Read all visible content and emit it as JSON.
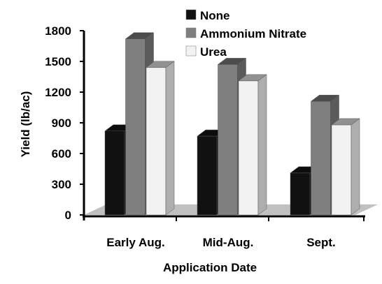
{
  "chart_data": {
    "type": "bar",
    "title": "",
    "xlabel": "Application Date",
    "ylabel": "Yield (lb/ac)",
    "categories": [
      "Early Aug.",
      "Mid-Aug.",
      "Sept."
    ],
    "series": [
      {
        "name": "None",
        "values": [
          820,
          770,
          410
        ],
        "color": "#111111"
      },
      {
        "name": "Ammonium Nitrate",
        "values": [
          1720,
          1470,
          1110
        ],
        "color": "#7f7f7f"
      },
      {
        "name": "Urea",
        "values": [
          1440,
          1310,
          880
        ],
        "color": "#f2f2f2"
      }
    ],
    "ylim": [
      0,
      1800
    ],
    "yticks": [
      "0",
      "300",
      "600",
      "900",
      "1200",
      "1500",
      "1800"
    ],
    "grid": false,
    "legend_position": "top-right",
    "style": "3d"
  }
}
